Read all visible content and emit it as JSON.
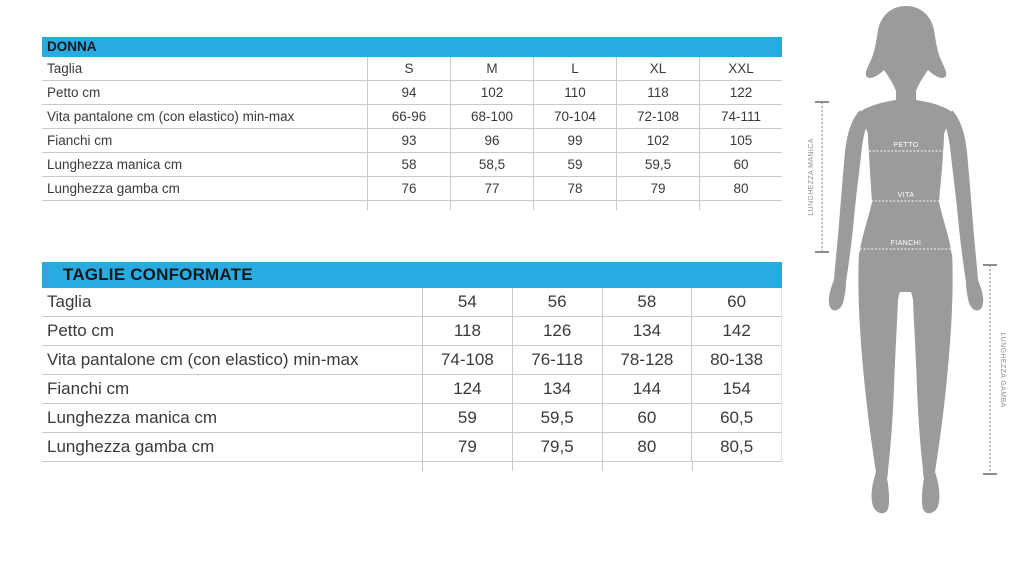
{
  "colors": {
    "header_bg": "#29ABE2",
    "header_text": "#171717",
    "table_text": "#3a3a3a",
    "border": "#c9c9c9",
    "silhouette": "#9b9b9b",
    "measure": "#8d8d8d",
    "figure_label": "#ffffff"
  },
  "tables": [
    {
      "title": "DONNA",
      "rows": [
        {
          "label": "Taglia",
          "values": [
            "S",
            "M",
            "L",
            "XL",
            "XXL"
          ]
        },
        {
          "label": "Petto cm",
          "values": [
            "94",
            "102",
            "110",
            "118",
            "122"
          ]
        },
        {
          "label": "Vita pantalone cm (con elastico) min-max",
          "values": [
            "66-96",
            "68-100",
            "70-104",
            "72-108",
            "74-111"
          ]
        },
        {
          "label": "Fianchi cm",
          "values": [
            "93",
            "96",
            "99",
            "102",
            "105"
          ]
        },
        {
          "label": "Lunghezza manica cm",
          "values": [
            "58",
            "58,5",
            "59",
            "59,5",
            "60"
          ]
        },
        {
          "label": "Lunghezza gamba cm",
          "values": [
            "76",
            "77",
            "78",
            "79",
            "80"
          ]
        }
      ]
    },
    {
      "title": "TAGLIE CONFORMATE",
      "rows": [
        {
          "label": "Taglia",
          "values": [
            "54",
            "56",
            "58",
            "60"
          ]
        },
        {
          "label": "Petto cm",
          "values": [
            "118",
            "126",
            "134",
            "142"
          ]
        },
        {
          "label": "Vita pantalone cm (con elastico) min-max",
          "values": [
            "74-108",
            "76-118",
            "78-128",
            "80-138"
          ]
        },
        {
          "label": "Fianchi cm",
          "values": [
            "124",
            "134",
            "144",
            "154"
          ]
        },
        {
          "label": "Lunghezza manica cm",
          "values": [
            "59",
            "59,5",
            "60",
            "60,5"
          ]
        },
        {
          "label": "Lunghezza gamba cm",
          "values": [
            "79",
            "79,5",
            "80",
            "80,5"
          ]
        }
      ]
    }
  ],
  "figure": {
    "chest_label": "PETTO",
    "waist_label": "VITA",
    "hips_label": "FIANCHI",
    "sleeve_label": "LUNGHEZZA MANICA",
    "leg_label": "LUNGHEZZA GAMBA"
  }
}
